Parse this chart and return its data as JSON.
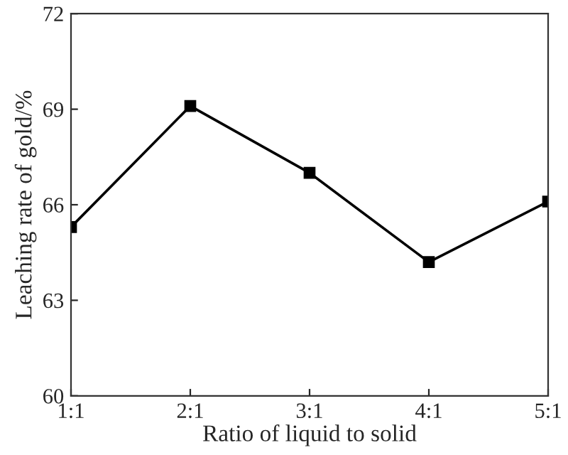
{
  "chart_data": {
    "type": "line",
    "xlabel": "Ratio of liquid to solid",
    "ylabel": "Leaching rate of gold/%",
    "categories": [
      "1:1",
      "2:1",
      "3:1",
      "4:1",
      "5:1"
    ],
    "series": [
      {
        "color": "#000000",
        "values": [
          65.3,
          69.1,
          67.0,
          64.2,
          66.1
        ]
      }
    ],
    "ylim": [
      60,
      72
    ],
    "yticks": [
      60,
      63,
      66,
      69,
      72
    ],
    "marker": "square",
    "line_style": "solid",
    "grid": false,
    "legend": false
  }
}
